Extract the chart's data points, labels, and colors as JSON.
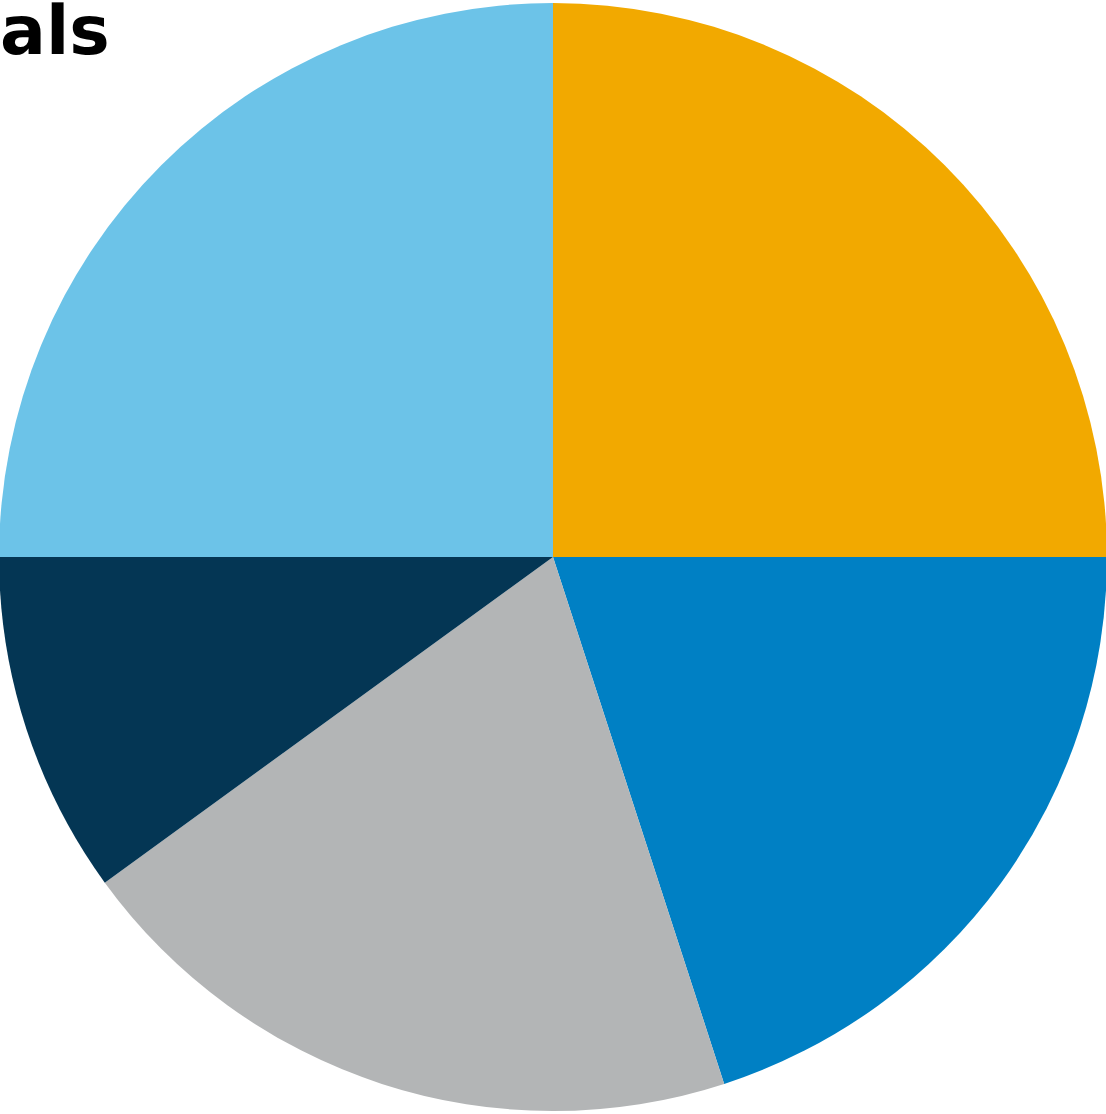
{
  "chart_data": {
    "type": "pie",
    "title": "als",
    "categories": [
      null,
      null,
      null,
      null,
      null
    ],
    "values": [
      25,
      20,
      20,
      10,
      25
    ],
    "colors": [
      "#f2a900",
      "#0080c4",
      "#b3b5b6",
      "#043654",
      "#6cc3e8"
    ]
  }
}
